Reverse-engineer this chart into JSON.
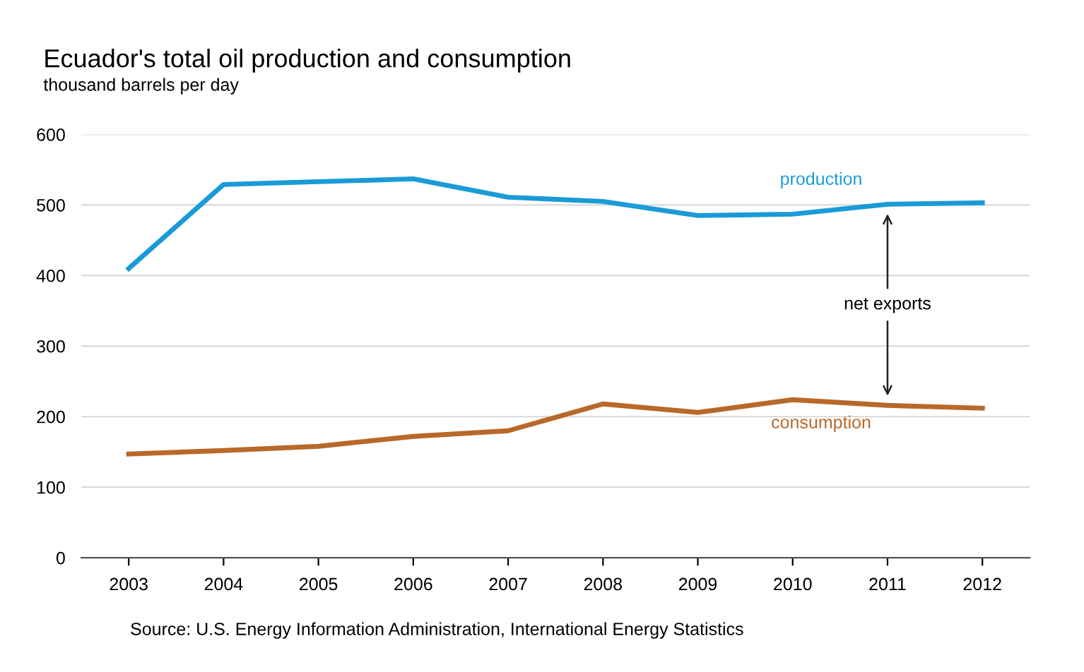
{
  "chart_data": {
    "type": "line",
    "title": "Ecuador's total oil production and consumption",
    "subtitle": "thousand barrels per day",
    "categories": [
      "2003",
      "2004",
      "2005",
      "2006",
      "2007",
      "2008",
      "2009",
      "2010",
      "2011",
      "2012"
    ],
    "series": [
      {
        "name": "production",
        "color": "#1a9bd7",
        "values": [
          410,
          529,
          533,
          537,
          511,
          505,
          485,
          487,
          501,
          503
        ]
      },
      {
        "name": "consumption",
        "color": "#b8692a",
        "values": [
          147,
          152,
          158,
          172,
          180,
          218,
          206,
          224,
          216,
          212
        ]
      }
    ],
    "ylim": [
      0,
      600
    ],
    "yticks": [
      0,
      100,
      200,
      300,
      400,
      500,
      600
    ],
    "grid": "y",
    "legend": false,
    "marker": "none",
    "line_style": "solid",
    "annotations": [
      "net exports",
      "Source: U.S. Energy Information Administration, International Energy Statistics"
    ]
  }
}
